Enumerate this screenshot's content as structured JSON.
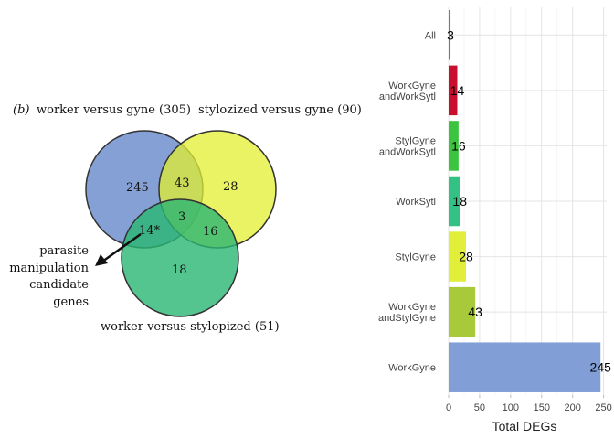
{
  "venn": {
    "panel_letter": "(b)",
    "set_a_label": "worker versus gyne (305)",
    "set_b_label": "stylozized versus gyne (90)",
    "set_c_label": "worker versus stylopized (51)",
    "regions": {
      "a_only": "245",
      "ab": "43",
      "b_only": "28",
      "abc": "3",
      "ac": "14*",
      "bc": "16",
      "c_only": "18"
    },
    "annotation_lines": [
      "parasite",
      "manipulation",
      "candidate",
      "genes"
    ],
    "colors": {
      "a": "#6f8fce",
      "b": "#e1ef2f",
      "c": "#2bb673"
    }
  },
  "chart_data": {
    "type": "bar",
    "orientation": "horizontal",
    "categories": [
      [
        "WorkGyne"
      ],
      [
        "WorkGyne",
        "andStylGyne"
      ],
      [
        "StylGyne"
      ],
      [
        "WorkSytl"
      ],
      [
        "StylGyne",
        "andWorkSytl"
      ],
      [
        "WorkGyne",
        "andWorkSytl"
      ],
      [
        "All"
      ]
    ],
    "values": [
      245,
      43,
      28,
      18,
      16,
      14,
      3
    ],
    "data_labels": [
      "245",
      "43",
      "28",
      "18",
      "16",
      "14",
      "3"
    ],
    "colors": [
      "#819fd6",
      "#a8c93a",
      "#e1ef3a",
      "#33c184",
      "#3cc440",
      "#c8102e",
      "#22b04a"
    ],
    "xlabel": "Total DEGs",
    "xticks": [
      0,
      50,
      100,
      150,
      200,
      250
    ],
    "xlim": [
      0,
      255
    ],
    "grid": true
  }
}
